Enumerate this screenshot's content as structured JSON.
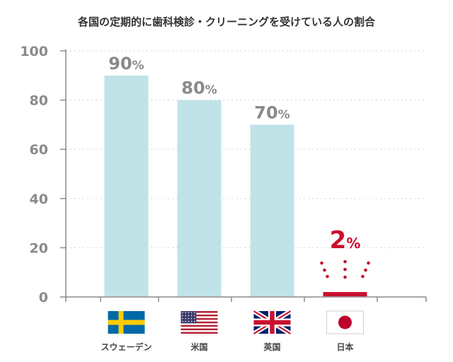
{
  "chart_data": {
    "type": "bar",
    "title": "各国の定期的に歯科検診・クリーニングを受けている人の割合",
    "categories": [
      "スウェーデン",
      "米国",
      "英国",
      "日本"
    ],
    "values": [
      90,
      80,
      70,
      2
    ],
    "value_labels": [
      "90",
      "80",
      "70",
      "2"
    ],
    "value_unit": "%",
    "ylim": [
      0,
      100
    ],
    "yticks": [
      "0",
      "20",
      "40",
      "60",
      "80",
      "100"
    ],
    "grid": true,
    "xlabel": "",
    "ylabel": "",
    "highlight_category": "日本",
    "flags": [
      "sweden-flag-icon",
      "usa-flag-icon",
      "uk-flag-icon",
      "japan-flag-icon"
    ],
    "colors": {
      "bar": "#bfe3e7",
      "highlight": "#c8102e",
      "value_label": "#8a8a8a",
      "axis": "#8c8c8c",
      "grid": "#d9d9d9",
      "tick_label": "#8a8a8a",
      "title": "#333333"
    }
  }
}
